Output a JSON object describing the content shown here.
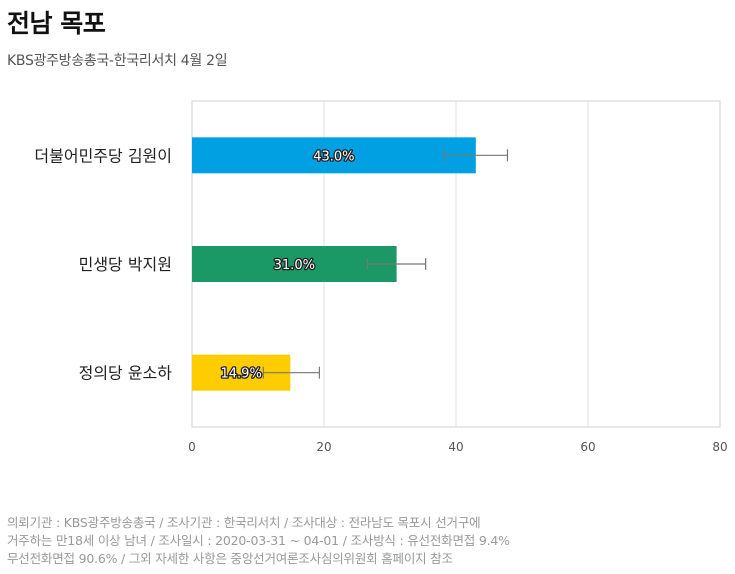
{
  "header": {
    "title": "전남 목포",
    "subtitle": "KBS광주방송총국-한국리서치 4월 2일"
  },
  "chart_data": {
    "type": "bar",
    "orientation": "horizontal",
    "categories": [
      "더불어민주당 김원이",
      "민생당 박지원",
      "정의당 윤소하"
    ],
    "values": [
      43.0,
      31.0,
      14.9
    ],
    "value_labels": [
      "43.0%",
      "31.0%",
      "14.9%"
    ],
    "error_bars": [
      [
        38.2,
        47.8
      ],
      [
        26.6,
        35.4
      ],
      [
        10.8,
        19.3
      ]
    ],
    "colors": [
      "#00a0e2",
      "#1a9966",
      "#ffcc00"
    ],
    "xlim": [
      0,
      80
    ],
    "xticks": [
      "0",
      "20",
      "40",
      "60",
      "80"
    ],
    "grid": true
  },
  "footer": {
    "lines": [
      "의뢰기관 : KBS광주방송총국 / 조사기관 : 한국리서치 / 조사대상 : 전라남도 목포시 선거구에",
      "거주하는 만18세 이상 남녀 / 조사일시 : 2020-03-31 ~ 04-01 / 조사방식 : 유선전화면접 9.4%",
      "무선전화면접 90.6% / 그외 자세한 사항은 중앙선거여론조사심의위원회 홈페이지 참조"
    ]
  }
}
